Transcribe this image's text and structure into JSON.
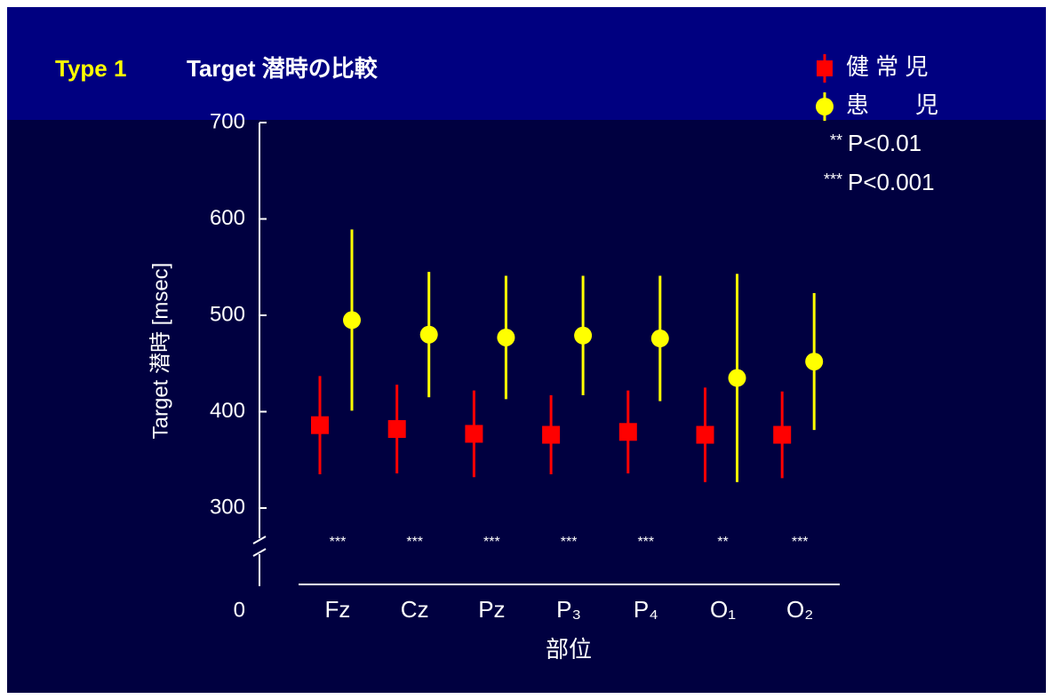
{
  "chart_data": {
    "type": "errorbar",
    "title_prefix": "Type 1",
    "title": "Target 潜時の比較",
    "y_label": "Target 潜時 [msec]",
    "x_label": "部位",
    "categories": [
      "Fz",
      "Cz",
      "Pz",
      "P₃",
      "P₄",
      "O₁",
      "O₂"
    ],
    "series": [
      {
        "name": "健 常 児",
        "color": "#ff0000",
        "marker": "square",
        "values": [
          386,
          382,
          377,
          376,
          379,
          376,
          376
        ],
        "errors": [
          51,
          46,
          45,
          41,
          43,
          49,
          45
        ]
      },
      {
        "name": "患　　児",
        "color": "#ffff00",
        "marker": "circle",
        "values": [
          495,
          480,
          477,
          479,
          476,
          435,
          452
        ],
        "errors": [
          94,
          65,
          64,
          62,
          65,
          108,
          71
        ]
      }
    ],
    "significance": [
      "***",
      "***",
      "***",
      "***",
      "***",
      "**",
      "***"
    ],
    "significance_legend": [
      {
        "stars": "**",
        "text": "P<0.01"
      },
      {
        "stars": "***",
        "text": "P<0.001"
      }
    ],
    "ylim": [
      300,
      700
    ],
    "yticks": [
      300,
      400,
      500,
      600,
      700
    ],
    "axis_break": {
      "label": "0"
    }
  }
}
